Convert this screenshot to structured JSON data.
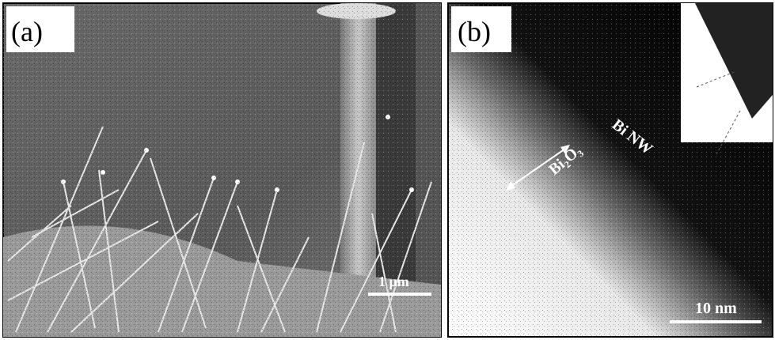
{
  "panels": [
    {
      "label": "(a)",
      "scale_bar": "1 μm"
    },
    {
      "label": "(b)",
      "annotations": [
        "Bi NW",
        "Bi₂O₃"
      ],
      "scale_bar": "10 nm"
    }
  ]
}
